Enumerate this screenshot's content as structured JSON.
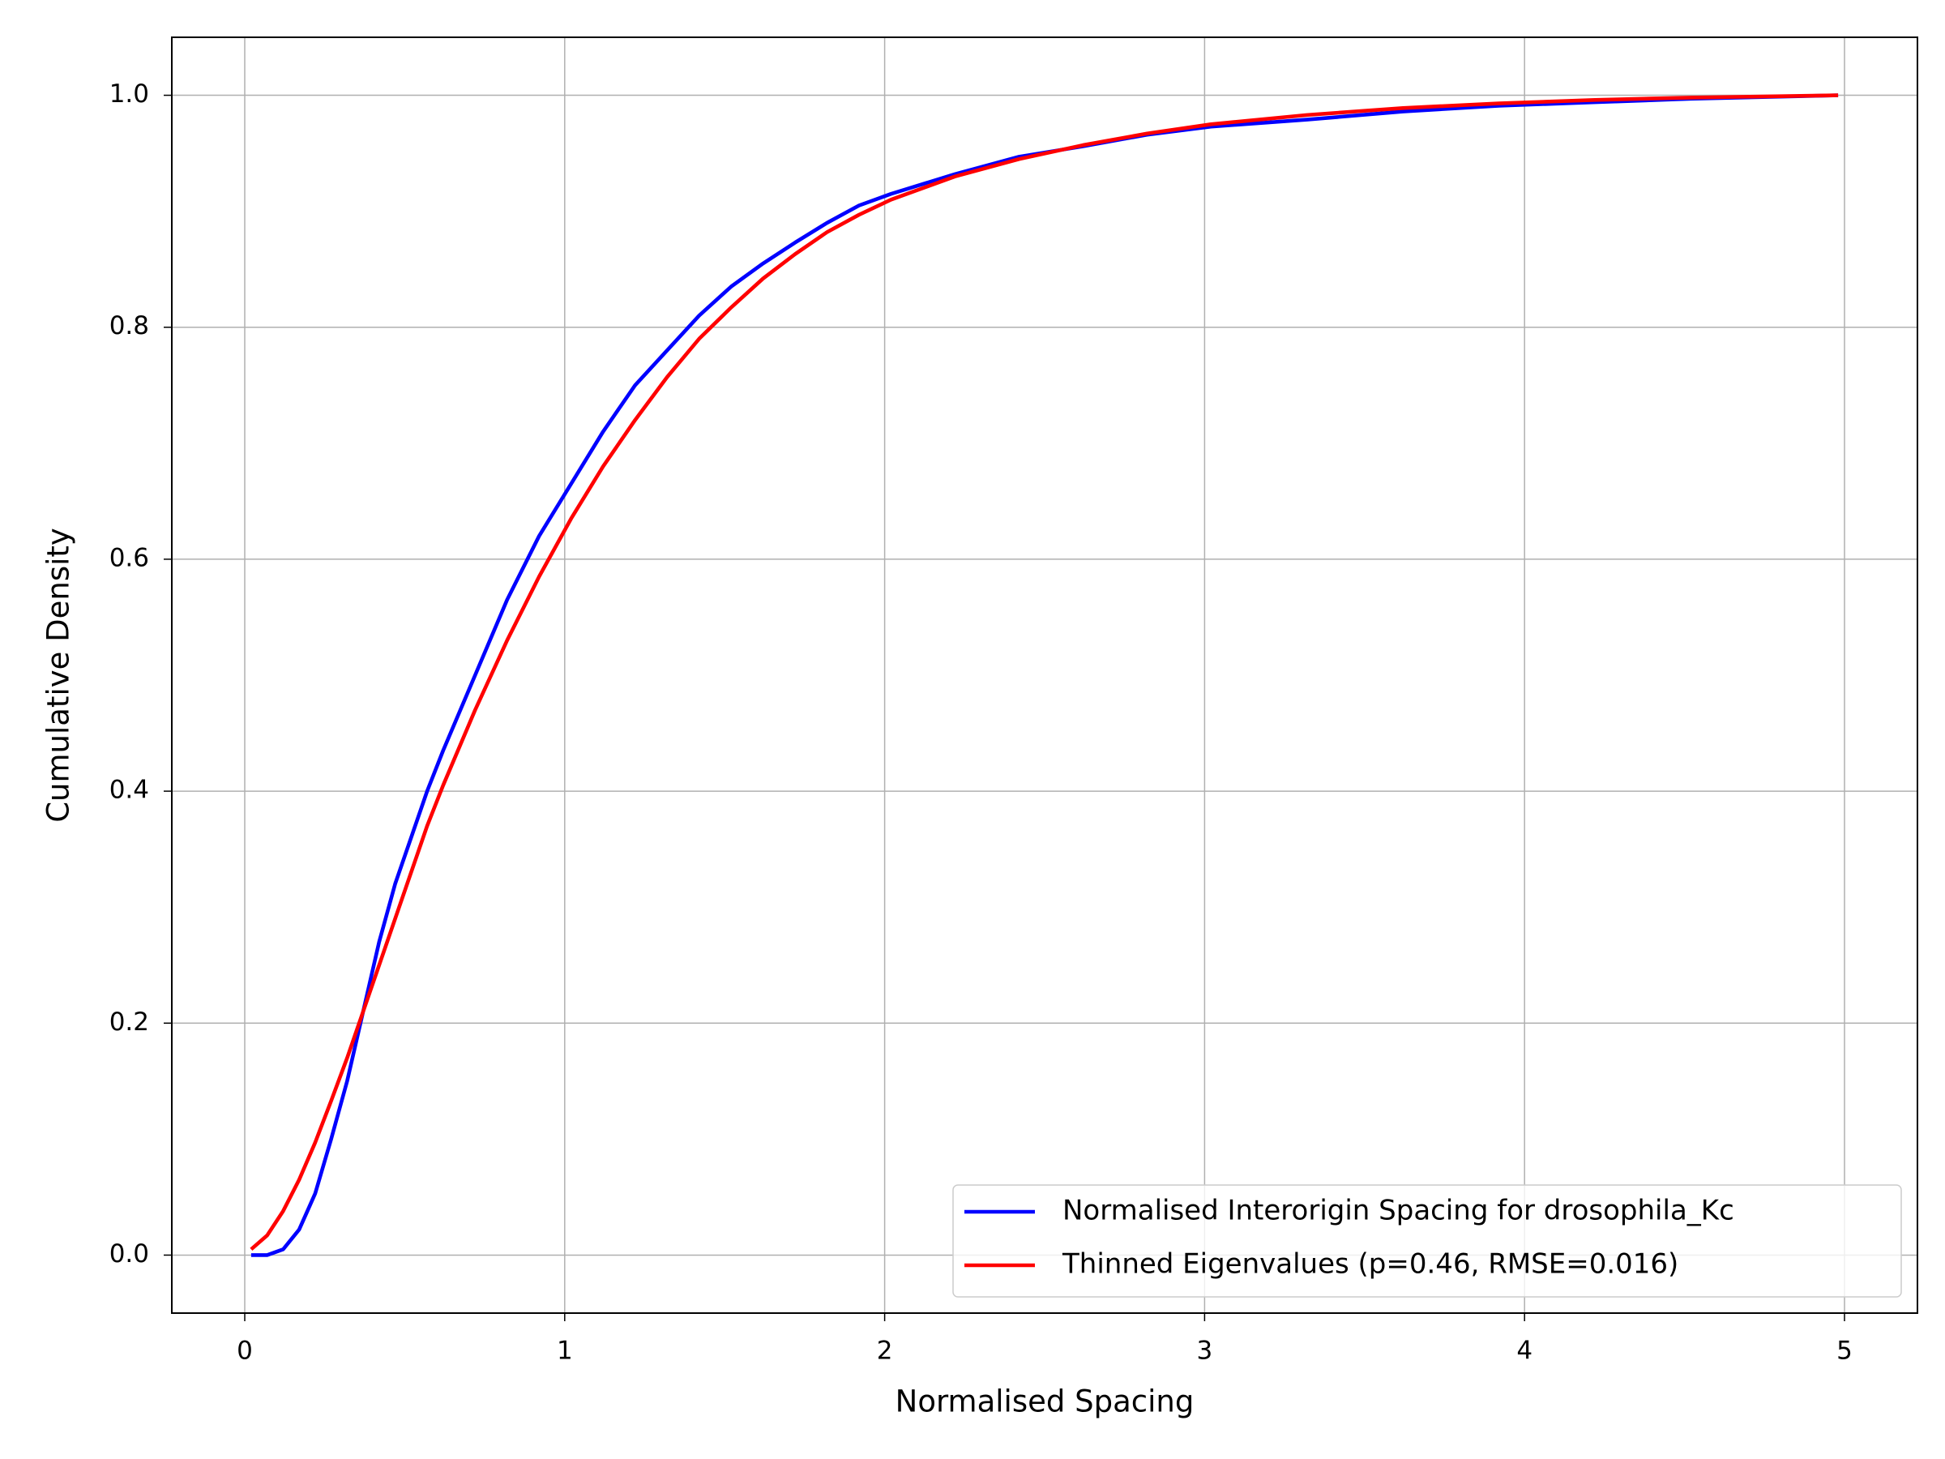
{
  "chart_data": {
    "type": "line",
    "x_label": "Normalised Spacing",
    "y_label": "Cumulative Density",
    "x": [
      0.02,
      0.07,
      0.12,
      0.17,
      0.22,
      0.27,
      0.32,
      0.37,
      0.42,
      0.47,
      0.52,
      0.57,
      0.62,
      0.72,
      0.82,
      0.92,
      1.02,
      1.12,
      1.22,
      1.32,
      1.42,
      1.52,
      1.62,
      1.72,
      1.82,
      1.92,
      2.02,
      2.22,
      2.42,
      2.62,
      2.82,
      3.02,
      3.32,
      3.62,
      3.92,
      4.22,
      4.52,
      4.98
    ],
    "series": [
      {
        "name": "Normalised Interorigin Spacing for drosophila_Kc",
        "color": "#0000ff",
        "values": [
          0.0,
          0.0,
          0.005,
          0.022,
          0.053,
          0.1,
          0.15,
          0.21,
          0.27,
          0.32,
          0.36,
          0.4,
          0.435,
          0.5,
          0.565,
          0.62,
          0.665,
          0.71,
          0.75,
          0.78,
          0.81,
          0.835,
          0.855,
          0.873,
          0.89,
          0.905,
          0.915,
          0.932,
          0.947,
          0.956,
          0.966,
          0.973,
          0.979,
          0.986,
          0.991,
          0.994,
          0.997,
          1.0
        ]
      },
      {
        "name": "Thinned Eigenvalues (p=0.46, RMSE=0.016)",
        "color": "#ff0000",
        "values": [
          0.005,
          0.017,
          0.038,
          0.065,
          0.097,
          0.133,
          0.17,
          0.21,
          0.25,
          0.29,
          0.33,
          0.37,
          0.405,
          0.47,
          0.53,
          0.585,
          0.635,
          0.68,
          0.72,
          0.757,
          0.79,
          0.817,
          0.842,
          0.863,
          0.882,
          0.897,
          0.91,
          0.93,
          0.945,
          0.957,
          0.967,
          0.975,
          0.983,
          0.989,
          0.993,
          0.996,
          0.998,
          1.0
        ]
      }
    ],
    "xlim": [
      -0.228,
      5.228
    ],
    "ylim": [
      -0.05,
      1.05
    ],
    "xticks": [
      0,
      1,
      2,
      3,
      4,
      5
    ],
    "yticks": [
      {
        "value": 0,
        "label": "0.0"
      },
      {
        "value": 0.2,
        "label": "0.2"
      },
      {
        "value": 0.4,
        "label": "0.4"
      },
      {
        "value": 0.6,
        "label": "0.6"
      },
      {
        "value": 0.8,
        "label": "0.8"
      },
      {
        "value": 1,
        "label": "1.0"
      }
    ],
    "grid": true,
    "legend": "lower right"
  }
}
